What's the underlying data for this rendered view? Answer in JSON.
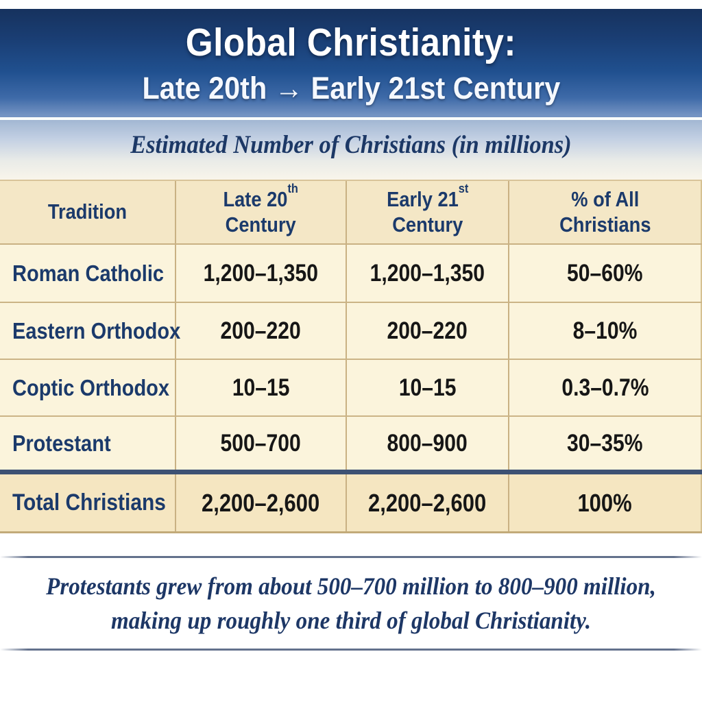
{
  "banner": {
    "title_line1": "Global Christianity:",
    "title_line2": "Late 20th → Early 21st Century"
  },
  "subtitle": "Estimated Number of Christians (in millions)",
  "table": {
    "header": {
      "tradition": "Tradition",
      "late20_base": "Late 20",
      "late20_sup": "th",
      "early21_base": "Early 21",
      "early21_sup": "st",
      "century": "Century",
      "pct_line1": "% of All",
      "pct_line2": "Christians"
    },
    "rows": [
      {
        "tradition": "Roman Catholic",
        "late20": "1,200–1,350",
        "early21": "1,200–1,350",
        "pct": "50–60%"
      },
      {
        "tradition": "Eastern Orthodox",
        "late20": "200–220",
        "early21": "200–220",
        "pct": "8–10%"
      },
      {
        "tradition": "Coptic Orthodox",
        "late20": "10–15",
        "early21": "10–15",
        "pct": "0.3–0.7%"
      },
      {
        "tradition": "Protestant",
        "late20": "500–700",
        "early21": "800–900",
        "pct": "30–35%"
      }
    ],
    "total": {
      "tradition": "Total Christians",
      "late20": "2,200–2,600",
      "early21": "2,200–2,600",
      "pct": "100%"
    }
  },
  "footnote": {
    "line1": "Protestants grew from about 500–700 million to 800–900 million,",
    "line2": "making up roughly one third of global Christianity."
  },
  "colors": {
    "banner_blue_top": "#16325e",
    "banner_blue_bottom": "#7493c2",
    "navy_text": "#1b3a6b",
    "header_cream": "#f4e7c6",
    "row_cream": "#fbf4dc",
    "total_beige": "#f5e6c1",
    "tan_border": "#c9b183",
    "separator_blue": "#3d5173",
    "number_black": "#161616"
  },
  "chart_data": {
    "type": "table",
    "title": "Global Christianity: Late 20th → Early 21st Century",
    "subtitle": "Estimated Number of Christians (in millions)",
    "columns": [
      "Tradition",
      "Late 20th Century",
      "Early 21st Century",
      "% of All Christians"
    ],
    "rows": [
      [
        "Roman Catholic",
        "1,200–1,350",
        "1,200–1,350",
        "50–60%"
      ],
      [
        "Eastern Orthodox",
        "200–220",
        "200–220",
        "8–10%"
      ],
      [
        "Coptic Orthodox",
        "10–15",
        "10–15",
        "0.3–0.7%"
      ],
      [
        "Protestant",
        "500–700",
        "800–900",
        "30–35%"
      ],
      [
        "Total Christians",
        "2,200–2,600",
        "2,200–2,600",
        "100%"
      ]
    ],
    "note": "Protestants grew from about 500–700 million to 800–900 million, making up roughly one third of global Christianity."
  }
}
